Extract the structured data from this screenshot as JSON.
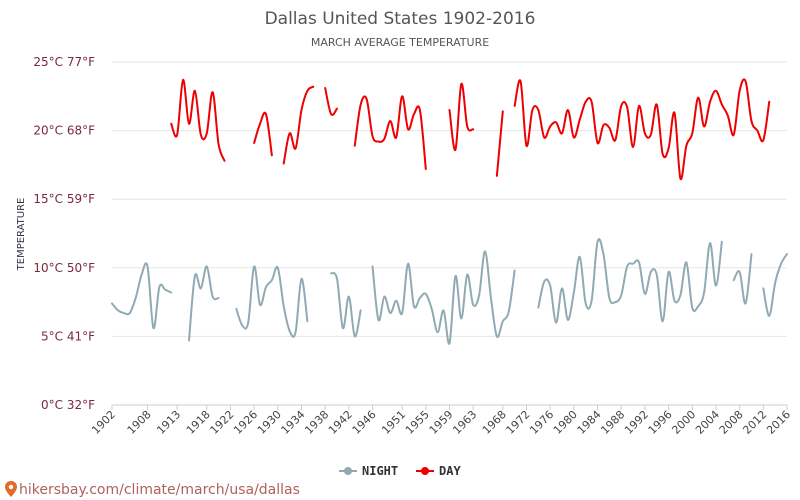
{
  "chart_data": {
    "type": "line",
    "title": "Dallas United States 1902-2016",
    "subtitle": "MARCH AVERAGE TEMPERATURE",
    "ylabel": "TEMPERATURE",
    "xlabel": "",
    "xlim": [
      1902,
      2016
    ],
    "ylim": [
      0,
      25
    ],
    "grid": true,
    "legend_position": "bottom-center",
    "y_ticks": [
      {
        "value": 0,
        "label": "0°C 32°F"
      },
      {
        "value": 5,
        "label": "5°C 41°F"
      },
      {
        "value": 10,
        "label": "10°C 50°F"
      },
      {
        "value": 15,
        "label": "15°C 59°F"
      },
      {
        "value": 20,
        "label": "20°C 68°F"
      },
      {
        "value": 25,
        "label": "25°C 77°F"
      }
    ],
    "x_ticks": [
      1902,
      1908,
      1913,
      1918,
      1922,
      1926,
      1930,
      1934,
      1938,
      1942,
      1946,
      1951,
      1955,
      1959,
      1963,
      1968,
      1972,
      1976,
      1980,
      1984,
      1988,
      1992,
      1996,
      2000,
      2004,
      2008,
      2012,
      2016
    ],
    "series": [
      {
        "name": "NIGHT",
        "color": "#90aab4",
        "segments": [
          [
            [
              1902,
              7.4
            ],
            [
              1903,
              6.9
            ],
            [
              1904,
              6.7
            ],
            [
              1905,
              6.7
            ],
            [
              1906,
              7.8
            ],
            [
              1907,
              9.5
            ],
            [
              1908,
              10.1
            ],
            [
              1909,
              5.6
            ],
            [
              1910,
              8.6
            ],
            [
              1911,
              8.4
            ],
            [
              1912,
              8.2
            ]
          ],
          [
            [
              1915,
              4.7
            ],
            [
              1916,
              9.4
            ],
            [
              1917,
              8.5
            ],
            [
              1918,
              10.1
            ],
            [
              1919,
              7.9
            ],
            [
              1920,
              7.8
            ]
          ],
          [
            [
              1923,
              7.0
            ],
            [
              1924,
              5.8
            ],
            [
              1925,
              6.0
            ],
            [
              1926,
              10.1
            ],
            [
              1927,
              7.3
            ],
            [
              1928,
              8.6
            ],
            [
              1929,
              9.1
            ],
            [
              1930,
              10.0
            ],
            [
              1931,
              7.2
            ],
            [
              1932,
              5.4
            ],
            [
              1933,
              5.3
            ],
            [
              1934,
              9.2
            ],
            [
              1935,
              6.1
            ]
          ],
          [
            [
              1939,
              9.6
            ],
            [
              1940,
              9.2
            ],
            [
              1941,
              5.6
            ],
            [
              1942,
              7.9
            ],
            [
              1943,
              5.0
            ],
            [
              1944,
              6.9
            ]
          ],
          [
            [
              1946,
              10.1
            ],
            [
              1947,
              6.2
            ],
            [
              1948,
              7.9
            ],
            [
              1949,
              6.7
            ],
            [
              1950,
              7.6
            ],
            [
              1951,
              6.7
            ],
            [
              1952,
              10.3
            ],
            [
              1953,
              7.2
            ],
            [
              1954,
              7.8
            ],
            [
              1955,
              8.1
            ],
            [
              1956,
              7.0
            ],
            [
              1957,
              5.3
            ],
            [
              1958,
              6.9
            ],
            [
              1959,
              4.5
            ],
            [
              1960,
              9.4
            ],
            [
              1961,
              6.3
            ],
            [
              1962,
              9.5
            ],
            [
              1963,
              7.3
            ],
            [
              1964,
              8.0
            ],
            [
              1965,
              11.2
            ],
            [
              1966,
              7.8
            ],
            [
              1967,
              5.0
            ],
            [
              1968,
              6.1
            ],
            [
              1969,
              6.8
            ],
            [
              1970,
              9.8
            ]
          ],
          [
            [
              1974,
              7.1
            ],
            [
              1975,
              9.0
            ],
            [
              1976,
              8.7
            ],
            [
              1977,
              6.0
            ],
            [
              1978,
              8.5
            ],
            [
              1979,
              6.2
            ],
            [
              1980,
              8.2
            ],
            [
              1981,
              10.8
            ],
            [
              1982,
              7.4
            ],
            [
              1983,
              7.6
            ],
            [
              1984,
              11.9
            ],
            [
              1985,
              11.0
            ],
            [
              1986,
              7.8
            ],
            [
              1987,
              7.5
            ],
            [
              1988,
              8.0
            ],
            [
              1989,
              10.1
            ],
            [
              1990,
              10.3
            ],
            [
              1991,
              10.4
            ],
            [
              1992,
              8.1
            ],
            [
              1993,
              9.7
            ],
            [
              1994,
              9.5
            ],
            [
              1995,
              6.1
            ],
            [
              1996,
              9.7
            ],
            [
              1997,
              7.6
            ],
            [
              1998,
              8.0
            ],
            [
              1999,
              10.4
            ],
            [
              2000,
              7.1
            ],
            [
              2001,
              7.2
            ],
            [
              2002,
              8.2
            ],
            [
              2003,
              11.8
            ],
            [
              2004,
              8.7
            ],
            [
              2005,
              11.9
            ]
          ],
          [
            [
              2007,
              9.1
            ],
            [
              2008,
              9.7
            ],
            [
              2009,
              7.4
            ],
            [
              2010,
              11.0
            ]
          ],
          [
            [
              2012,
              8.5
            ],
            [
              2013,
              6.5
            ],
            [
              2014,
              8.9
            ],
            [
              2015,
              10.3
            ],
            [
              2016,
              11.0
            ]
          ]
        ]
      },
      {
        "name": "DAY",
        "color": "#ee0000",
        "segments": [
          [
            [
              1912,
              20.5
            ],
            [
              1913,
              19.7
            ],
            [
              1914,
              23.7
            ],
            [
              1915,
              20.5
            ],
            [
              1916,
              22.9
            ],
            [
              1917,
              19.7
            ],
            [
              1918,
              19.8
            ],
            [
              1919,
              22.8
            ],
            [
              1920,
              19.0
            ],
            [
              1921,
              17.8
            ]
          ],
          [
            [
              1926,
              19.1
            ],
            [
              1927,
              20.5
            ],
            [
              1928,
              21.2
            ],
            [
              1929,
              18.2
            ]
          ],
          [
            [
              1931,
              17.6
            ],
            [
              1932,
              19.8
            ],
            [
              1933,
              18.7
            ],
            [
              1934,
              21.5
            ],
            [
              1935,
              22.9
            ],
            [
              1936,
              23.2
            ]
          ],
          [
            [
              1938,
              23.1
            ],
            [
              1939,
              21.2
            ],
            [
              1940,
              21.6
            ]
          ],
          [
            [
              1943,
              18.9
            ],
            [
              1944,
              21.9
            ],
            [
              1945,
              22.3
            ],
            [
              1946,
              19.6
            ],
            [
              1947,
              19.2
            ],
            [
              1948,
              19.4
            ],
            [
              1949,
              20.7
            ],
            [
              1950,
              19.5
            ],
            [
              1951,
              22.5
            ],
            [
              1952,
              20.1
            ],
            [
              1953,
              21.2
            ],
            [
              1954,
              21.5
            ],
            [
              1955,
              17.2
            ]
          ],
          [
            [
              1959,
              21.5
            ],
            [
              1960,
              18.6
            ],
            [
              1961,
              23.4
            ],
            [
              1962,
              20.3
            ],
            [
              1963,
              20.1
            ]
          ],
          [
            [
              1967,
              16.7
            ],
            [
              1968,
              21.4
            ]
          ],
          [
            [
              1970,
              21.8
            ],
            [
              1971,
              23.6
            ],
            [
              1972,
              18.9
            ],
            [
              1973,
              21.5
            ],
            [
              1974,
              21.5
            ],
            [
              1975,
              19.5
            ],
            [
              1976,
              20.3
            ],
            [
              1977,
              20.6
            ],
            [
              1978,
              19.8
            ],
            [
              1979,
              21.5
            ],
            [
              1980,
              19.5
            ],
            [
              1981,
              20.8
            ],
            [
              1982,
              22.1
            ],
            [
              1983,
              22.1
            ],
            [
              1984,
              19.1
            ],
            [
              1985,
              20.4
            ],
            [
              1986,
              20.2
            ],
            [
              1987,
              19.3
            ],
            [
              1988,
              21.8
            ],
            [
              1989,
              21.7
            ],
            [
              1990,
              18.8
            ],
            [
              1991,
              21.8
            ],
            [
              1992,
              19.8
            ],
            [
              1993,
              19.7
            ],
            [
              1994,
              21.9
            ],
            [
              1995,
              18.3
            ],
            [
              1996,
              18.7
            ],
            [
              1997,
              21.3
            ],
            [
              1998,
              16.5
            ],
            [
              1999,
              18.9
            ],
            [
              2000,
              19.8
            ],
            [
              2001,
              22.4
            ],
            [
              2002,
              20.3
            ],
            [
              2003,
              22.1
            ],
            [
              2004,
              22.9
            ],
            [
              2005,
              21.9
            ],
            [
              2006,
              21.1
            ],
            [
              2007,
              19.7
            ],
            [
              2008,
              22.9
            ],
            [
              2009,
              23.6
            ],
            [
              2010,
              20.7
            ],
            [
              2011,
              20.0
            ],
            [
              2012,
              19.3
            ],
            [
              2013,
              22.1
            ]
          ]
        ]
      }
    ]
  },
  "footer": {
    "url": "hikersbay.com/climate/march/usa/dallas"
  }
}
